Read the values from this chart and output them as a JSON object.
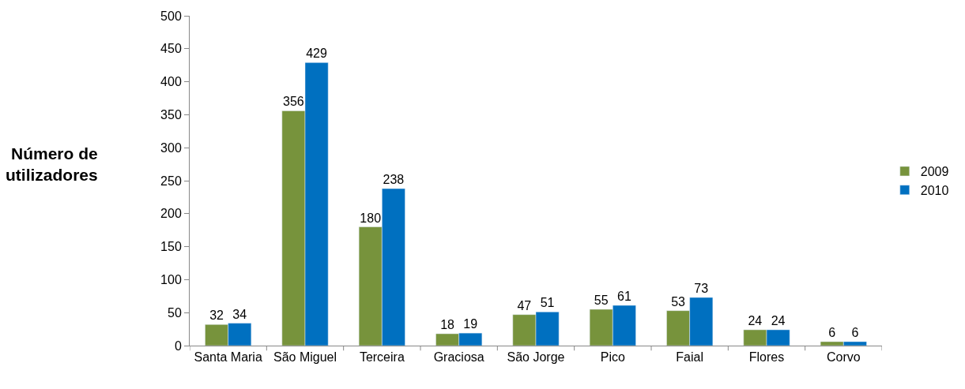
{
  "chart_data": {
    "type": "bar",
    "ylabel": "Número de utilizadores",
    "categories": [
      "Santa Maria",
      "São Miguel",
      "Terceira",
      "Graciosa",
      "São Jorge",
      "Pico",
      "Faial",
      "Flores",
      "Corvo"
    ],
    "series": [
      {
        "name": "2009",
        "color": "#77933c",
        "values": [
          32,
          356,
          180,
          18,
          47,
          55,
          53,
          24,
          6
        ]
      },
      {
        "name": "2010",
        "color": "#0070c0",
        "values": [
          34,
          429,
          238,
          19,
          51,
          61,
          73,
          24,
          6
        ]
      }
    ],
    "ylim": [
      0,
      500
    ],
    "yticks": [
      0,
      50,
      100,
      150,
      200,
      250,
      300,
      350,
      400,
      450,
      500
    ],
    "data_labels": true,
    "legend": "right"
  }
}
